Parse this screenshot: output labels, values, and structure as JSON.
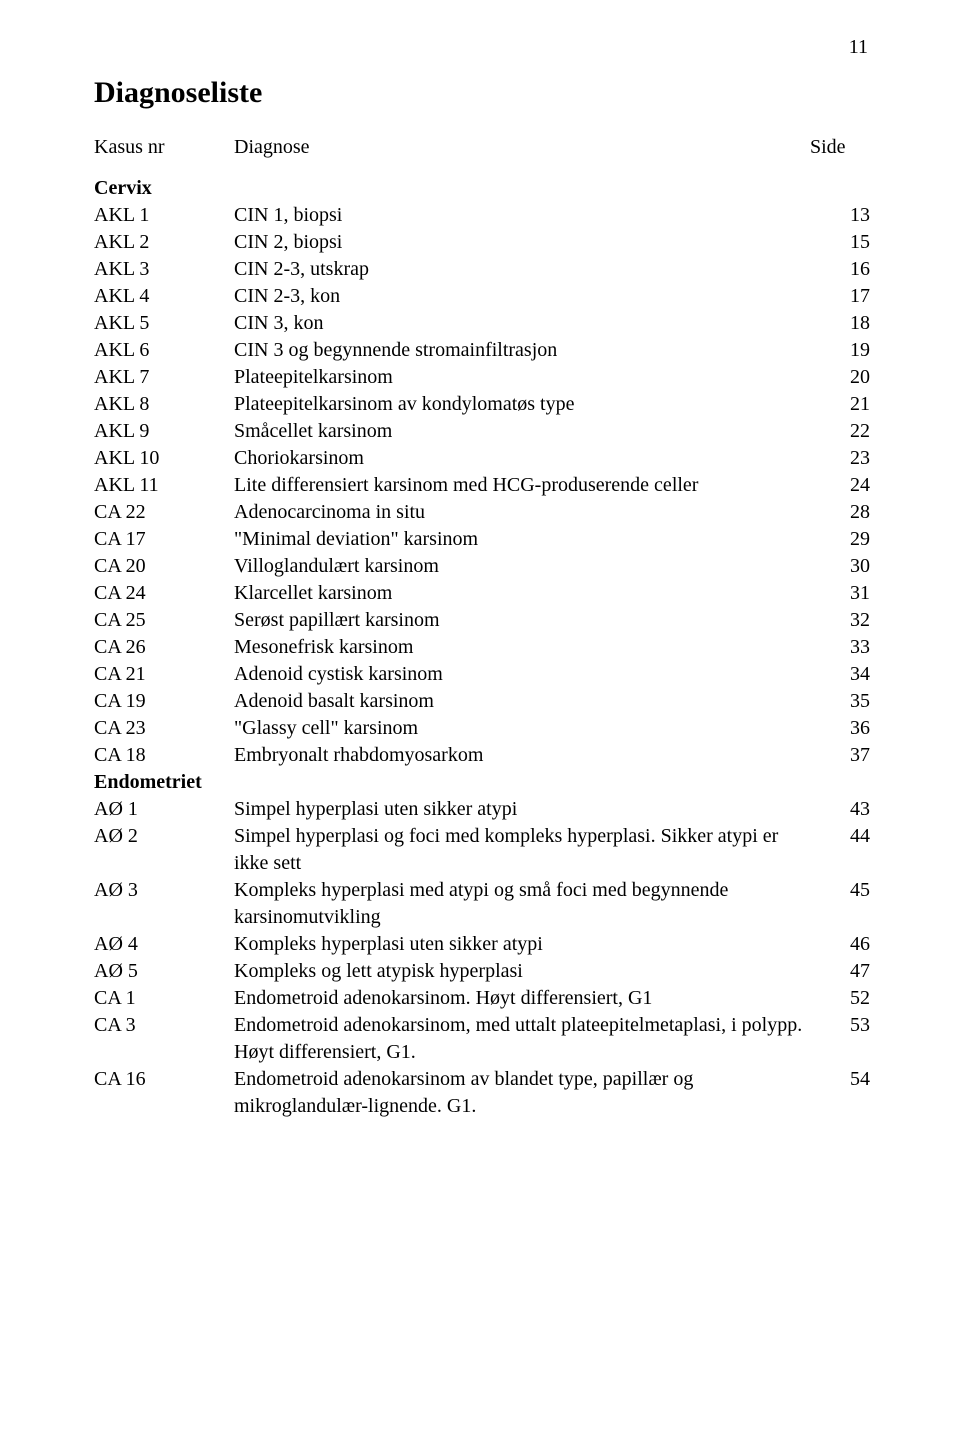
{
  "page_number": "11",
  "title": "Diagnoseliste",
  "header": {
    "code": "Kasus nr",
    "diagnosis": "Diagnose",
    "side": "Side"
  },
  "sections": [
    {
      "heading": "Cervix",
      "rows": [
        {
          "code": "AKL 1",
          "diagnosis": "CIN 1, biopsi",
          "side": "13"
        },
        {
          "code": "AKL 2",
          "diagnosis": "CIN 2, biopsi",
          "side": "15"
        },
        {
          "code": "AKL 3",
          "diagnosis": "CIN 2-3, utskrap",
          "side": "16"
        },
        {
          "code": "AKL 4",
          "diagnosis": "CIN 2-3, kon",
          "side": "17"
        },
        {
          "code": "AKL 5",
          "diagnosis": "CIN 3, kon",
          "side": "18"
        },
        {
          "code": "AKL 6",
          "diagnosis": "CIN 3 og begynnende stromainfiltrasjon",
          "side": "19"
        },
        {
          "code": "AKL 7",
          "diagnosis": "Plateepitelkarsinom",
          "side": "20"
        },
        {
          "code": "AKL 8",
          "diagnosis": "Plateepitelkarsinom av kondylomatøs type",
          "side": "21"
        },
        {
          "code": "AKL 9",
          "diagnosis": "Småcellet karsinom",
          "side": "22"
        },
        {
          "code": "AKL 10",
          "diagnosis": "Choriokarsinom",
          "side": "23"
        },
        {
          "code": "AKL 11",
          "diagnosis": "Lite differensiert karsinom med HCG-produserende celler",
          "side": "24"
        },
        {
          "code": "CA 22",
          "diagnosis": "Adenocarcinoma in situ",
          "side": "28"
        },
        {
          "code": "CA 17",
          "diagnosis": "\"Minimal deviation\" karsinom",
          "side": "29"
        },
        {
          "code": "CA 20",
          "diagnosis": "Villoglandulært karsinom",
          "side": "30"
        },
        {
          "code": "CA 24",
          "diagnosis": "Klarcellet karsinom",
          "side": "31"
        },
        {
          "code": "CA 25",
          "diagnosis": "Serøst papillært karsinom",
          "side": "32"
        },
        {
          "code": "CA 26",
          "diagnosis": "Mesonefrisk karsinom",
          "side": "33"
        },
        {
          "code": "CA 21",
          "diagnosis": "Adenoid cystisk karsinom",
          "side": "34"
        },
        {
          "code": "CA 19",
          "diagnosis": "Adenoid basalt karsinom",
          "side": "35"
        },
        {
          "code": "CA 23",
          "diagnosis": "\"Glassy cell\" karsinom",
          "side": "36"
        },
        {
          "code": "CA 18",
          "diagnosis": "Embryonalt rhabdomyosarkom",
          "side": "37"
        }
      ]
    },
    {
      "heading": "Endometriet",
      "rows": [
        {
          "code": "AØ 1",
          "diagnosis": "Simpel hyperplasi uten sikker atypi",
          "side": "43"
        },
        {
          "code": "AØ 2",
          "diagnosis": "Simpel hyperplasi og foci med kompleks hyperplasi. Sikker atypi er ikke sett",
          "side": "44"
        },
        {
          "code": "AØ 3",
          "diagnosis": "Kompleks hyperplasi med atypi og små foci med begynnende karsinomutvikling",
          "side": "45"
        },
        {
          "code": "AØ 4",
          "diagnosis": "Kompleks hyperplasi uten sikker atypi",
          "side": "46"
        },
        {
          "code": "AØ 5",
          "diagnosis": "Kompleks og lett atypisk hyperplasi",
          "side": "47"
        },
        {
          "code": "CA 1",
          "diagnosis": "Endometroid adenokarsinom. Høyt differensiert, G1",
          "side": "52"
        },
        {
          "code": "CA 3",
          "diagnosis": "Endometroid adenokarsinom, med uttalt plateepitelmetaplasi, i polypp. Høyt differensiert, G1.",
          "side": "53"
        },
        {
          "code": "CA 16",
          "diagnosis": "Endometroid adenokarsinom av blandet type, papillær og mikroglandulær-lignende. G1.",
          "side": "54"
        }
      ]
    }
  ]
}
